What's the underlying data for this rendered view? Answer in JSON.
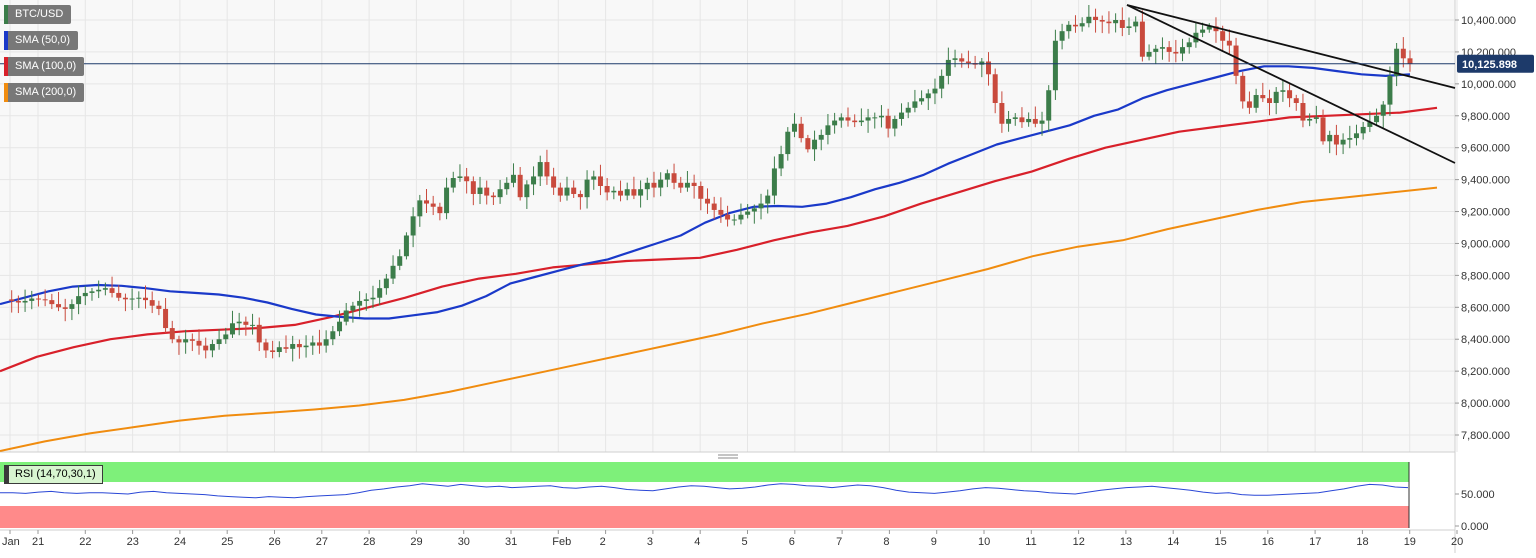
{
  "legend": [
    {
      "label": "BTC/USD",
      "color": "#3c7d4a"
    },
    {
      "label": "SMA (50,0)",
      "color": "#1a39c9"
    },
    {
      "label": "SMA (100,0)",
      "color": "#d8202a"
    },
    {
      "label": "SMA (200,0)",
      "color": "#f08c0f"
    }
  ],
  "rsi_label": "RSI (14,70,30,1)",
  "price_tag": "10,125.898",
  "chart_data": {
    "type": "candlestick",
    "symbol": "BTC/USD",
    "ylim": [
      7700,
      10500
    ],
    "y_ticks": [
      "7,800.000",
      "8,000.000",
      "8,200.000",
      "8,400.000",
      "8,600.000",
      "8,800.000",
      "9,000.000",
      "9,200.000",
      "9,400.000",
      "9,600.000",
      "9,800.000",
      "10,000.000",
      "10,200.000",
      "10,400.000"
    ],
    "y_tick_values": [
      7800,
      8000,
      8200,
      8400,
      8600,
      8800,
      9000,
      9200,
      9400,
      9600,
      9800,
      10000,
      10200,
      10400
    ],
    "x_ticks": [
      "Jan",
      "21",
      "22",
      "23",
      "24",
      "25",
      "26",
      "27",
      "28",
      "29",
      "30",
      "31",
      "Feb",
      "2",
      "3",
      "4",
      "5",
      "6",
      "7",
      "8",
      "9",
      "10",
      "11",
      "12",
      "13",
      "14",
      "15",
      "16",
      "17",
      "18",
      "19",
      "20"
    ],
    "last_price": 10125.898,
    "close": [
      8650,
      8640,
      8630,
      8640,
      8655,
      8650,
      8645,
      8620,
      8600,
      8590,
      8620,
      8670,
      8690,
      8700,
      8710,
      8720,
      8690,
      8660,
      8650,
      8655,
      8660,
      8645,
      8610,
      8590,
      8470,
      8400,
      8380,
      8400,
      8390,
      8360,
      8330,
      8370,
      8400,
      8430,
      8500,
      8510,
      8490,
      8490,
      8380,
      8330,
      8320,
      8350,
      8340,
      8370,
      8350,
      8360,
      8380,
      8360,
      8400,
      8450,
      8510,
      8580,
      8610,
      8640,
      8650,
      8660,
      8720,
      8780,
      8860,
      8920,
      9050,
      9170,
      9270,
      9250,
      9230,
      9190,
      9350,
      9410,
      9420,
      9390,
      9310,
      9350,
      9300,
      9290,
      9340,
      9380,
      9430,
      9290,
      9370,
      9420,
      9510,
      9420,
      9350,
      9300,
      9350,
      9310,
      9290,
      9400,
      9420,
      9360,
      9320,
      9330,
      9300,
      9340,
      9300,
      9340,
      9380,
      9350,
      9400,
      9440,
      9380,
      9350,
      9380,
      9360,
      9280,
      9250,
      9210,
      9180,
      9150,
      9150,
      9180,
      9200,
      9220,
      9250,
      9300,
      9470,
      9560,
      9700,
      9750,
      9660,
      9590,
      9650,
      9680,
      9740,
      9770,
      9790,
      9770,
      9760,
      9770,
      9790,
      9790,
      9800,
      9720,
      9780,
      9820,
      9850,
      9890,
      9910,
      9940,
      9970,
      10050,
      10150,
      10160,
      10140,
      10130,
      10120,
      10140,
      10060,
      9880,
      9750,
      9780,
      9790,
      9760,
      9780,
      9750,
      9770,
      9960,
      10270,
      10330,
      10370,
      10360,
      10380,
      10420,
      10400,
      10390,
      10380,
      10400,
      10350,
      10360,
      10390,
      10170,
      10200,
      10220,
      10230,
      10200,
      10190,
      10230,
      10260,
      10320,
      10340,
      10360,
      10330,
      10270,
      10240,
      10050,
      9890,
      9850,
      9930,
      9910,
      9880,
      9950,
      9960,
      9910,
      9880,
      9770,
      9780,
      9790,
      9640,
      9680,
      9620,
      9650,
      9660,
      9690,
      9730,
      9760,
      9800,
      9870,
      10050,
      10220,
      10160,
      10125.898
    ],
    "sma_50": [
      8620,
      8660,
      8700,
      8730,
      8740,
      8735,
      8720,
      8700,
      8690,
      8680,
      8660,
      8630,
      8590,
      8555,
      8540,
      8530,
      8530,
      8550,
      8570,
      8610,
      8670,
      8750,
      8790,
      8830,
      8870,
      8900,
      8950,
      9000,
      9050,
      9130,
      9190,
      9230,
      9235,
      9230,
      9250,
      9290,
      9340,
      9380,
      9430,
      9500,
      9560,
      9620,
      9660,
      9700,
      9740,
      9800,
      9840,
      9910,
      9960,
      10000,
      10040,
      10080,
      10110,
      10110,
      10100,
      10080,
      10060,
      10050,
      10060
    ],
    "sma_100": [
      8200,
      8290,
      8350,
      8400,
      8430,
      8450,
      8460,
      8470,
      8490,
      8540,
      8600,
      8660,
      8730,
      8780,
      8810,
      8850,
      8870,
      8890,
      8900,
      8910,
      8960,
      9020,
      9070,
      9110,
      9170,
      9250,
      9320,
      9390,
      9450,
      9530,
      9600,
      9650,
      9700,
      9730,
      9760,
      9790,
      9800,
      9810,
      9820,
      9850
    ],
    "sma_200": [
      7700,
      7760,
      7810,
      7850,
      7890,
      7920,
      7940,
      7960,
      7985,
      8020,
      8070,
      8130,
      8190,
      8250,
      8310,
      8370,
      8430,
      8500,
      8560,
      8630,
      8700,
      8770,
      8840,
      8920,
      8980,
      9020,
      9090,
      9150,
      9210,
      9260,
      9290,
      9320,
      9350
    ],
    "trendlines": [
      {
        "from": {
          "x_day": "13",
          "price": 10500
        },
        "to": {
          "x_day": "20",
          "price": 9960
        }
      },
      {
        "from": {
          "x_day": "13",
          "price": 10500
        },
        "to": {
          "x_day": "20",
          "price": 9490
        }
      }
    ],
    "rsi": {
      "label": "RSI (14,70,30,1)",
      "overbought": 70,
      "oversold": 30,
      "y_ticks": [
        "50.000",
        "0.000"
      ],
      "y_tick_values": [
        50,
        0
      ],
      "values": [
        52,
        52,
        51,
        53,
        54,
        52,
        51,
        52,
        52,
        51,
        50,
        53,
        54,
        52,
        51,
        50,
        49,
        47,
        46,
        45,
        44,
        46,
        45,
        44,
        46,
        47,
        48,
        49,
        52,
        56,
        58,
        61,
        63,
        66,
        64,
        62,
        65,
        63,
        61,
        62,
        60,
        61,
        62,
        63,
        60,
        59,
        61,
        62,
        60,
        57,
        56,
        55,
        58,
        61,
        63,
        62,
        60,
        58,
        59,
        61,
        64,
        66,
        65,
        63,
        62,
        60,
        62,
        64,
        63,
        60,
        56,
        53,
        52,
        51,
        53,
        55,
        58,
        60,
        59,
        57,
        55,
        54,
        52,
        51,
        50,
        53,
        56,
        58,
        60,
        61,
        62,
        60,
        58,
        56,
        53,
        51,
        52,
        49,
        48,
        48,
        49,
        50,
        51,
        52,
        55,
        58,
        62,
        65,
        64,
        61,
        60
      ]
    }
  }
}
